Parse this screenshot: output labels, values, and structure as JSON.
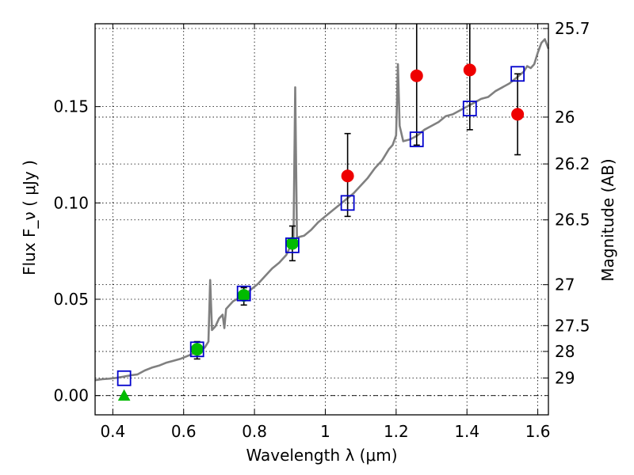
{
  "chart_data": {
    "type": "scatter",
    "xlabel": "Wavelength  λ (μm)",
    "ylabel": "Flux  F_ν  ( μJy )",
    "ylabel_right": "Magnitude (AB)",
    "xlim": [
      0.35,
      1.63
    ],
    "ylim": [
      -0.01,
      0.193
    ],
    "x_ticks": [
      {
        "value": 0.4,
        "label": "0.4"
      },
      {
        "value": 0.6,
        "label": "0.6"
      },
      {
        "value": 0.8,
        "label": "0.8"
      },
      {
        "value": 1.0,
        "label": "1"
      },
      {
        "value": 1.2,
        "label": "1.2"
      },
      {
        "value": 1.4,
        "label": "1.4"
      },
      {
        "value": 1.6,
        "label": "1.6"
      }
    ],
    "y_ticks": [
      {
        "value": 0.0,
        "label": "0.00"
      },
      {
        "value": 0.05,
        "label": "0.05"
      },
      {
        "value": 0.1,
        "label": "0.10"
      },
      {
        "value": 0.15,
        "label": "0.15"
      }
    ],
    "mag_ticks": [
      {
        "mag": 25.7,
        "label": "25.7"
      },
      {
        "mag": 26.0,
        "label": "26"
      },
      {
        "mag": 26.2,
        "label": "26.2"
      },
      {
        "mag": 26.5,
        "label": "26.5"
      },
      {
        "mag": 27.0,
        "label": "27"
      },
      {
        "mag": 27.5,
        "label": "27.5"
      },
      {
        "mag": 28.0,
        "label": "28"
      },
      {
        "mag": 29.0,
        "label": "29"
      }
    ],
    "grid": true,
    "zero_line": true,
    "colors": {
      "sed": "#808080",
      "model": "#0000cc",
      "obs_blue": "#00bb00",
      "obs_red": "#ee0000",
      "errorbar": "#000000"
    },
    "sed_spectrum": [
      [
        0.35,
        0.008
      ],
      [
        0.37,
        0.0085
      ],
      [
        0.39,
        0.0088
      ],
      [
        0.41,
        0.0092
      ],
      [
        0.43,
        0.0098
      ],
      [
        0.45,
        0.0105
      ],
      [
        0.47,
        0.011
      ],
      [
        0.49,
        0.013
      ],
      [
        0.51,
        0.0145
      ],
      [
        0.53,
        0.0155
      ],
      [
        0.55,
        0.017
      ],
      [
        0.57,
        0.018
      ],
      [
        0.59,
        0.019
      ],
      [
        0.61,
        0.0205
      ],
      [
        0.63,
        0.022
      ],
      [
        0.65,
        0.0235
      ],
      [
        0.66,
        0.025
      ],
      [
        0.67,
        0.028
      ],
      [
        0.675,
        0.06
      ],
      [
        0.68,
        0.034
      ],
      [
        0.69,
        0.036
      ],
      [
        0.7,
        0.04
      ],
      [
        0.71,
        0.042
      ],
      [
        0.715,
        0.035
      ],
      [
        0.72,
        0.045
      ],
      [
        0.73,
        0.047
      ],
      [
        0.74,
        0.049
      ],
      [
        0.75,
        0.05
      ],
      [
        0.77,
        0.052
      ],
      [
        0.79,
        0.055
      ],
      [
        0.81,
        0.058
      ],
      [
        0.83,
        0.062
      ],
      [
        0.85,
        0.066
      ],
      [
        0.87,
        0.069
      ],
      [
        0.89,
        0.073
      ],
      [
        0.9,
        0.077
      ],
      [
        0.91,
        0.08
      ],
      [
        0.915,
        0.16
      ],
      [
        0.92,
        0.082
      ],
      [
        0.94,
        0.083
      ],
      [
        0.96,
        0.086
      ],
      [
        0.98,
        0.09
      ],
      [
        1.0,
        0.093
      ],
      [
        1.02,
        0.096
      ],
      [
        1.04,
        0.099
      ],
      [
        1.06,
        0.102
      ],
      [
        1.08,
        0.105
      ],
      [
        1.1,
        0.109
      ],
      [
        1.12,
        0.113
      ],
      [
        1.14,
        0.118
      ],
      [
        1.16,
        0.122
      ],
      [
        1.18,
        0.128
      ],
      [
        1.19,
        0.13
      ],
      [
        1.2,
        0.135
      ],
      [
        1.205,
        0.172
      ],
      [
        1.21,
        0.14
      ],
      [
        1.22,
        0.132
      ],
      [
        1.24,
        0.133
      ],
      [
        1.26,
        0.135
      ],
      [
        1.28,
        0.138
      ],
      [
        1.3,
        0.14
      ],
      [
        1.32,
        0.142
      ],
      [
        1.34,
        0.145
      ],
      [
        1.36,
        0.146
      ],
      [
        1.38,
        0.148
      ],
      [
        1.4,
        0.15
      ],
      [
        1.42,
        0.152
      ],
      [
        1.44,
        0.154
      ],
      [
        1.46,
        0.155
      ],
      [
        1.48,
        0.158
      ],
      [
        1.5,
        0.16
      ],
      [
        1.52,
        0.162
      ],
      [
        1.54,
        0.165
      ],
      [
        1.56,
        0.168
      ],
      [
        1.57,
        0.171
      ],
      [
        1.58,
        0.17
      ],
      [
        1.59,
        0.172
      ],
      [
        1.6,
        0.178
      ],
      [
        1.61,
        0.183
      ],
      [
        1.62,
        0.185
      ],
      [
        1.63,
        0.18
      ]
    ],
    "model_points": [
      {
        "x": 0.432,
        "y": 0.009
      },
      {
        "x": 0.638,
        "y": 0.024
      },
      {
        "x": 0.77,
        "y": 0.053
      },
      {
        "x": 0.907,
        "y": 0.078
      },
      {
        "x": 1.063,
        "y": 0.1
      },
      {
        "x": 1.258,
        "y": 0.133
      },
      {
        "x": 1.408,
        "y": 0.149
      },
      {
        "x": 1.543,
        "y": 0.167
      }
    ],
    "observed_points": [
      {
        "x": 0.432,
        "y": 0.0,
        "marker": "triangle",
        "color": "green",
        "err_low": 0.0,
        "err_high": 0.0
      },
      {
        "x": 0.638,
        "y": 0.024,
        "marker": "circle",
        "color": "green",
        "err_low": 0.005,
        "err_high": 0.004
      },
      {
        "x": 0.77,
        "y": 0.052,
        "marker": "circle",
        "color": "green",
        "err_low": 0.005,
        "err_high": 0.004
      },
      {
        "x": 0.907,
        "y": 0.079,
        "marker": "circle",
        "color": "green",
        "err_low": 0.009,
        "err_high": 0.009
      },
      {
        "x": 1.063,
        "y": 0.114,
        "marker": "circle",
        "color": "red",
        "err_low": 0.021,
        "err_high": 0.022
      },
      {
        "x": 1.258,
        "y": 0.166,
        "marker": "circle",
        "color": "red",
        "err_low": 0.036,
        "err_high": 0.05
      },
      {
        "x": 1.408,
        "y": 0.169,
        "marker": "circle",
        "color": "red",
        "err_low": 0.031,
        "err_high": 0.05
      },
      {
        "x": 1.543,
        "y": 0.146,
        "marker": "circle",
        "color": "red",
        "err_low": 0.021,
        "err_high": 0.021
      }
    ]
  }
}
